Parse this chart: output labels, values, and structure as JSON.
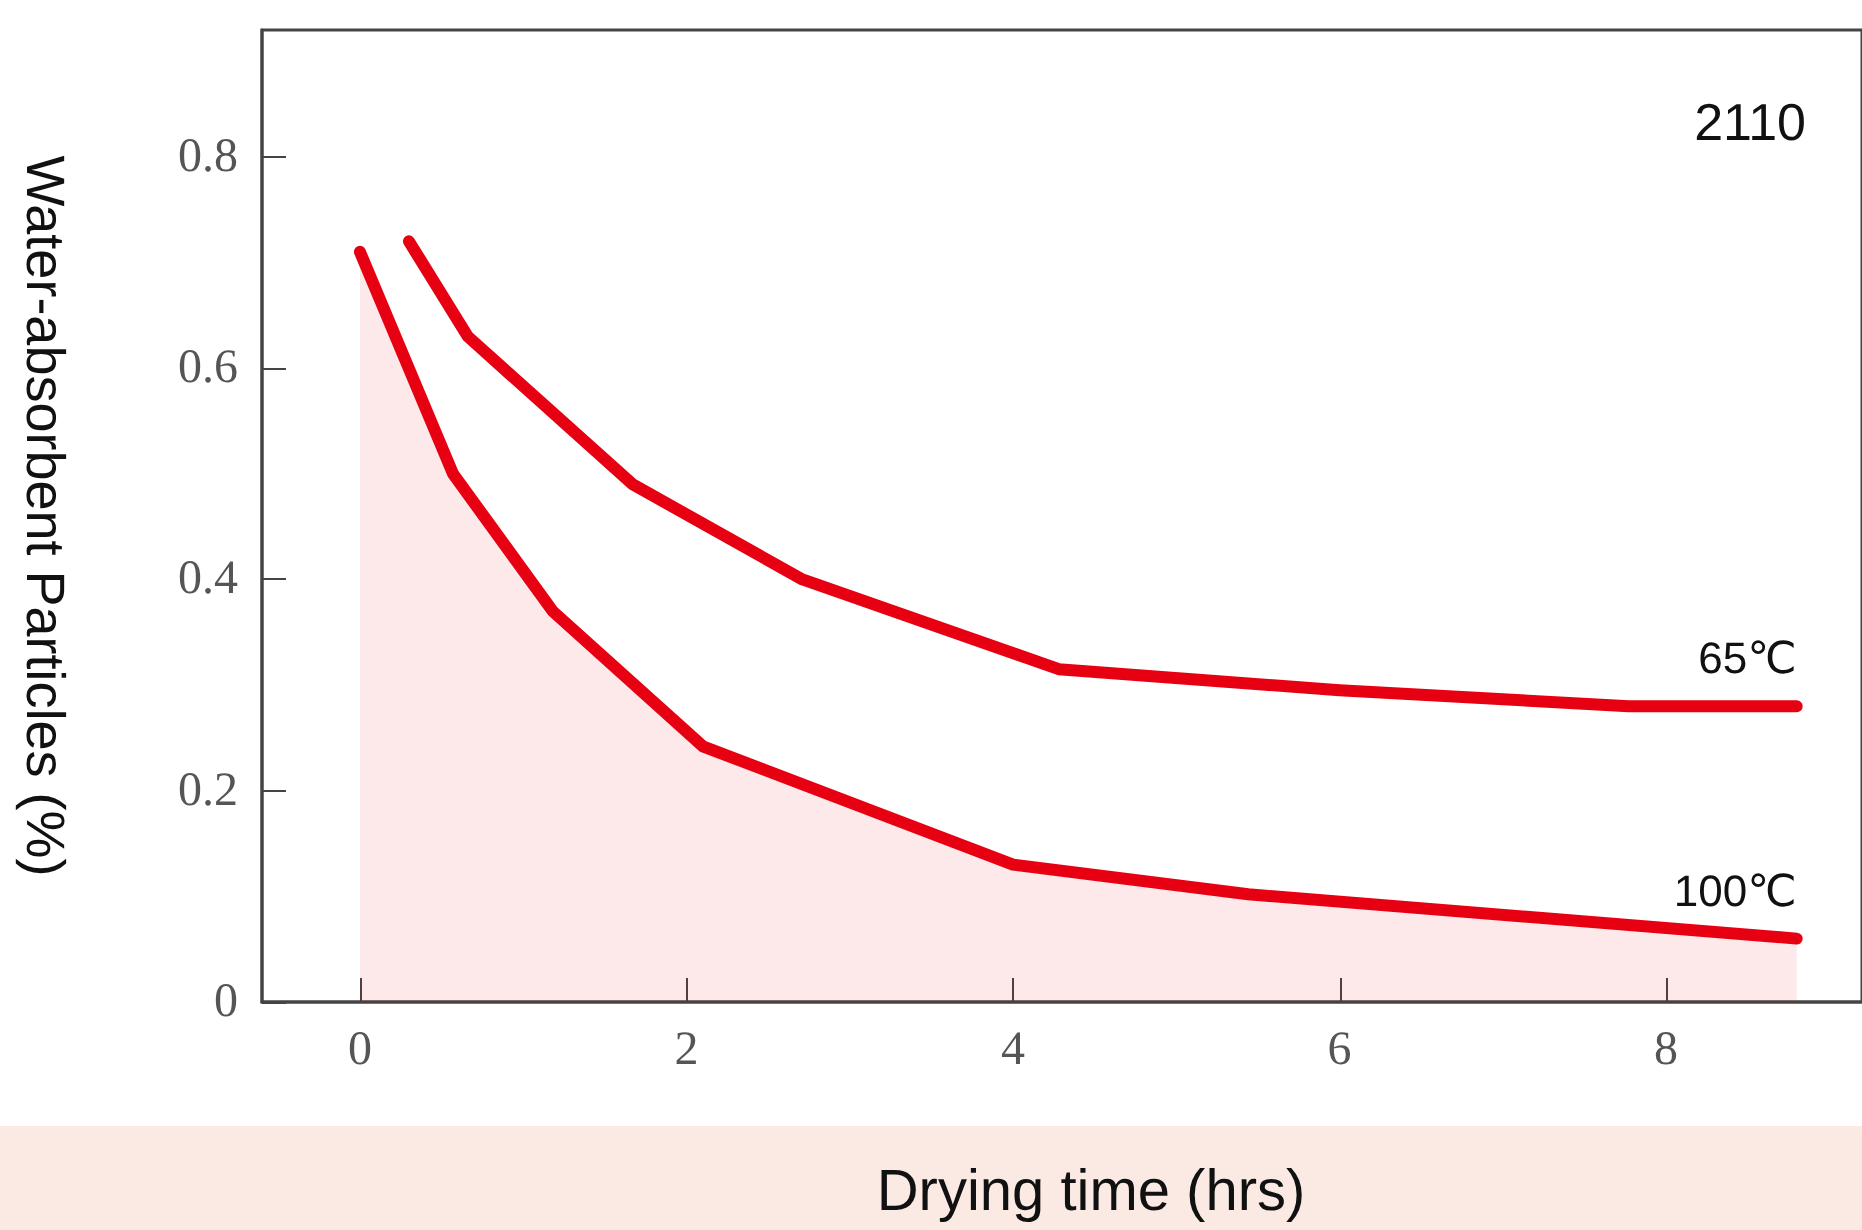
{
  "chart_data": {
    "type": "line",
    "xlabel": "Drying time (hrs)",
    "ylabel": "Water-absorbent Particles (%)",
    "annotations": [
      "2110"
    ],
    "xlim": [
      -0.6,
      9.2
    ],
    "xticks": [
      0,
      2,
      4,
      6,
      8
    ],
    "ylim": [
      0,
      0.92
    ],
    "yticks": [
      0,
      0.2,
      0.4,
      0.6,
      0.8
    ],
    "grid": false,
    "legend": false,
    "marker": "none",
    "line_style": "solid",
    "series": [
      {
        "name": "65℃",
        "color": "#e60012",
        "x": [
          0.3,
          0.66,
          1.67,
          2.71,
          4.28,
          6,
          7.77,
          8.8
        ],
        "values": [
          0.72,
          0.63,
          0.49,
          0.4,
          0.315,
          0.295,
          0.28,
          0.28
        ]
      },
      {
        "name": "100℃",
        "type": "area",
        "color": "#e60012",
        "x": [
          0,
          0.57,
          1.18,
          2.1,
          4,
          5.44,
          8.8
        ],
        "values": [
          0.71,
          0.5,
          0.37,
          0.242,
          0.13,
          0.102,
          0.06
        ]
      }
    ]
  }
}
